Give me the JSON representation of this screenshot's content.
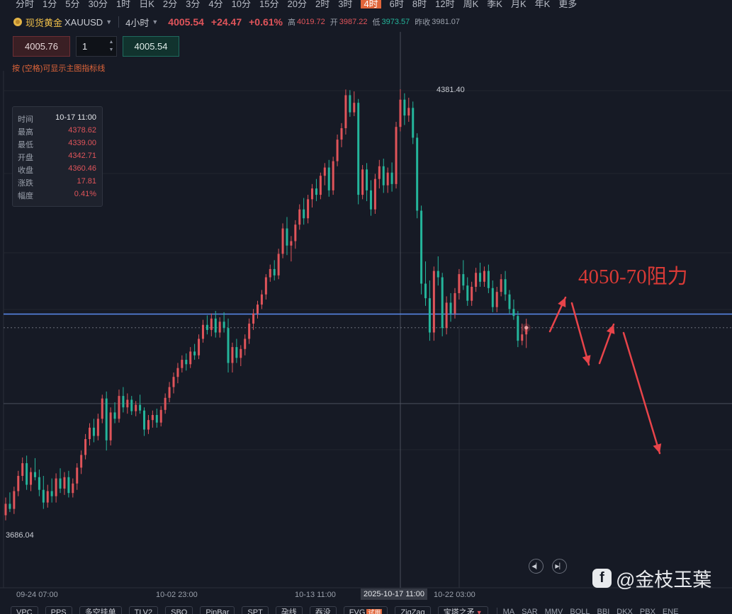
{
  "timeframes": {
    "items": [
      "分时",
      "1分",
      "5分",
      "30分",
      "1时",
      "日K",
      "2分",
      "3分",
      "4分",
      "10分",
      "15分",
      "20分",
      "2时",
      "3时",
      "4时",
      "6时",
      "8时",
      "12时",
      "周K",
      "季K",
      "月K",
      "年K",
      "更多"
    ],
    "active": "4时"
  },
  "instrument": {
    "name": "现货黄金",
    "symbol": "XAUUSD",
    "timeframe": "4小时",
    "price": "4005.54",
    "change": "+24.47",
    "change_pct": "+0.61%",
    "high_label": "高",
    "high": "4019.72",
    "open_label": "开",
    "open": "3987.22",
    "low_label": "低",
    "low": "3973.57",
    "prev_label": "昨收",
    "prev_close": "3981.07"
  },
  "order": {
    "sell_price": "4005.76",
    "quantity": "1",
    "buy_price": "4005.54",
    "hint": "按 (空格)可显示主图指标线"
  },
  "tooltip": {
    "rows": [
      {
        "label": "时间",
        "value": "10-17 11:00"
      },
      {
        "label": "最高",
        "value": "4378.62"
      },
      {
        "label": "最低",
        "value": "4339.00"
      },
      {
        "label": "开盘",
        "value": "4342.71"
      },
      {
        "label": "收盘",
        "value": "4360.46"
      },
      {
        "label": "涨跌",
        "value": "17.81"
      },
      {
        "label": "幅度",
        "value": "0.41%"
      }
    ]
  },
  "annotation": "4050-70阻力",
  "watermark": "@金枝玉葉",
  "nav": {
    "prev_icon": "skip-back-icon",
    "next_icon": "skip-forward-icon"
  },
  "x_axis": {
    "labels": [
      "09-24 07:00",
      "10-02 23:00",
      "10-13 11:00",
      "10-22 03:00"
    ],
    "crosshair_label": "2025-10-17 11:00"
  },
  "toolbar": {
    "pills": [
      "VPC",
      "PPS",
      "多空挂单",
      "TLV2",
      "SBO",
      "PinBar",
      "SPT",
      "孕线",
      "吞没",
      "FVG",
      "ZigZag",
      "宝塔之矛"
    ],
    "trial_tag": "试用",
    "indicators": [
      "MA",
      "SAR",
      "MMV",
      "BOLL",
      "BBI",
      "DKX",
      "PBX",
      "ENE"
    ]
  },
  "chart_data": {
    "type": "candlestick",
    "symbol": "XAUUSD",
    "interval": "4H",
    "max_label": "4381.40",
    "min_label": "3686.04",
    "resistance_line": 4027,
    "current_price_line": 4005.54,
    "crosshair_price": 3886,
    "colors": {
      "up": "#e0545a",
      "down": "#24b59b",
      "resistance": "#5b8cf0"
    },
    "candles": [
      {
        "o": 3710,
        "h": 3738,
        "l": 3702,
        "c": 3728
      },
      {
        "o": 3728,
        "h": 3746,
        "l": 3715,
        "c": 3720
      },
      {
        "o": 3720,
        "h": 3755,
        "l": 3712,
        "c": 3748
      },
      {
        "o": 3748,
        "h": 3780,
        "l": 3740,
        "c": 3772
      },
      {
        "o": 3772,
        "h": 3801,
        "l": 3764,
        "c": 3792
      },
      {
        "o": 3792,
        "h": 3804,
        "l": 3750,
        "c": 3758
      },
      {
        "o": 3758,
        "h": 3785,
        "l": 3748,
        "c": 3778
      },
      {
        "o": 3778,
        "h": 3800,
        "l": 3765,
        "c": 3770
      },
      {
        "o": 3770,
        "h": 3782,
        "l": 3740,
        "c": 3750
      },
      {
        "o": 3750,
        "h": 3772,
        "l": 3720,
        "c": 3730
      },
      {
        "o": 3730,
        "h": 3758,
        "l": 3722,
        "c": 3748
      },
      {
        "o": 3748,
        "h": 3768,
        "l": 3730,
        "c": 3740
      },
      {
        "o": 3740,
        "h": 3776,
        "l": 3730,
        "c": 3768
      },
      {
        "o": 3768,
        "h": 3784,
        "l": 3745,
        "c": 3752
      },
      {
        "o": 3752,
        "h": 3778,
        "l": 3742,
        "c": 3770
      },
      {
        "o": 3770,
        "h": 3780,
        "l": 3738,
        "c": 3745
      },
      {
        "o": 3745,
        "h": 3768,
        "l": 3738,
        "c": 3760
      },
      {
        "o": 3760,
        "h": 3792,
        "l": 3750,
        "c": 3785
      },
      {
        "o": 3785,
        "h": 3812,
        "l": 3775,
        "c": 3805
      },
      {
        "o": 3805,
        "h": 3838,
        "l": 3798,
        "c": 3830
      },
      {
        "o": 3830,
        "h": 3855,
        "l": 3820,
        "c": 3848
      },
      {
        "o": 3848,
        "h": 3862,
        "l": 3825,
        "c": 3835
      },
      {
        "o": 3835,
        "h": 3870,
        "l": 3828,
        "c": 3862
      },
      {
        "o": 3862,
        "h": 3900,
        "l": 3855,
        "c": 3894
      },
      {
        "o": 3894,
        "h": 3905,
        "l": 3812,
        "c": 3828
      },
      {
        "o": 3828,
        "h": 3880,
        "l": 3820,
        "c": 3872
      },
      {
        "o": 3872,
        "h": 3888,
        "l": 3855,
        "c": 3862
      },
      {
        "o": 3862,
        "h": 3908,
        "l": 3856,
        "c": 3898
      },
      {
        "o": 3898,
        "h": 3912,
        "l": 3872,
        "c": 3880
      },
      {
        "o": 3880,
        "h": 3902,
        "l": 3870,
        "c": 3892
      },
      {
        "o": 3892,
        "h": 3898,
        "l": 3868,
        "c": 3874
      },
      {
        "o": 3874,
        "h": 3890,
        "l": 3866,
        "c": 3884
      },
      {
        "o": 3884,
        "h": 3900,
        "l": 3870,
        "c": 3875
      },
      {
        "o": 3875,
        "h": 3880,
        "l": 3835,
        "c": 3845
      },
      {
        "o": 3845,
        "h": 3868,
        "l": 3838,
        "c": 3860
      },
      {
        "o": 3860,
        "h": 3875,
        "l": 3848,
        "c": 3868
      },
      {
        "o": 3868,
        "h": 3878,
        "l": 3848,
        "c": 3856
      },
      {
        "o": 3856,
        "h": 3882,
        "l": 3850,
        "c": 3876
      },
      {
        "o": 3876,
        "h": 3902,
        "l": 3870,
        "c": 3895
      },
      {
        "o": 3895,
        "h": 3920,
        "l": 3888,
        "c": 3912
      },
      {
        "o": 3912,
        "h": 3935,
        "l": 3902,
        "c": 3928
      },
      {
        "o": 3928,
        "h": 3950,
        "l": 3918,
        "c": 3942
      },
      {
        "o": 3942,
        "h": 3962,
        "l": 3935,
        "c": 3955
      },
      {
        "o": 3955,
        "h": 3965,
        "l": 3938,
        "c": 3948
      },
      {
        "o": 3948,
        "h": 3975,
        "l": 3942,
        "c": 3968
      },
      {
        "o": 3968,
        "h": 3980,
        "l": 3955,
        "c": 3962
      },
      {
        "o": 3962,
        "h": 3995,
        "l": 3956,
        "c": 3988
      },
      {
        "o": 3988,
        "h": 4018,
        "l": 3982,
        "c": 4010
      },
      {
        "o": 4010,
        "h": 4025,
        "l": 3995,
        "c": 4002
      },
      {
        "o": 4002,
        "h": 4028,
        "l": 3992,
        "c": 4020
      },
      {
        "o": 4020,
        "h": 4032,
        "l": 3990,
        "c": 3998
      },
      {
        "o": 3998,
        "h": 4022,
        "l": 3990,
        "c": 4015
      },
      {
        "o": 4015,
        "h": 4030,
        "l": 3998,
        "c": 4005
      },
      {
        "o": 4005,
        "h": 4020,
        "l": 3935,
        "c": 3950
      },
      {
        "o": 3950,
        "h": 3982,
        "l": 3935,
        "c": 3975
      },
      {
        "o": 3975,
        "h": 3988,
        "l": 3950,
        "c": 3958
      },
      {
        "o": 3958,
        "h": 3978,
        "l": 3945,
        "c": 3972
      },
      {
        "o": 3972,
        "h": 3995,
        "l": 3962,
        "c": 3988
      },
      {
        "o": 3988,
        "h": 4020,
        "l": 3980,
        "c": 4012
      },
      {
        "o": 4012,
        "h": 4035,
        "l": 4002,
        "c": 4028
      },
      {
        "o": 4028,
        "h": 4048,
        "l": 4020,
        "c": 4042
      },
      {
        "o": 4042,
        "h": 4065,
        "l": 4035,
        "c": 4058
      },
      {
        "o": 4058,
        "h": 4090,
        "l": 4050,
        "c": 4085
      },
      {
        "o": 4085,
        "h": 4105,
        "l": 4078,
        "c": 4098
      },
      {
        "o": 4098,
        "h": 4112,
        "l": 4080,
        "c": 4088
      },
      {
        "o": 4088,
        "h": 4130,
        "l": 4082,
        "c": 4122
      },
      {
        "o": 4122,
        "h": 4170,
        "l": 4115,
        "c": 4162
      },
      {
        "o": 4162,
        "h": 4180,
        "l": 4120,
        "c": 4135
      },
      {
        "o": 4135,
        "h": 4150,
        "l": 4110,
        "c": 4142
      },
      {
        "o": 4142,
        "h": 4175,
        "l": 4130,
        "c": 4168
      },
      {
        "o": 4168,
        "h": 4200,
        "l": 4160,
        "c": 4192
      },
      {
        "o": 4192,
        "h": 4210,
        "l": 4168,
        "c": 4178
      },
      {
        "o": 4178,
        "h": 4215,
        "l": 4170,
        "c": 4208
      },
      {
        "o": 4208,
        "h": 4232,
        "l": 4195,
        "c": 4225
      },
      {
        "o": 4225,
        "h": 4240,
        "l": 4205,
        "c": 4215
      },
      {
        "o": 4215,
        "h": 4250,
        "l": 4208,
        "c": 4245
      },
      {
        "o": 4245,
        "h": 4265,
        "l": 4230,
        "c": 4258
      },
      {
        "o": 4258,
        "h": 4270,
        "l": 4212,
        "c": 4222
      },
      {
        "o": 4222,
        "h": 4275,
        "l": 4215,
        "c": 4268
      },
      {
        "o": 4268,
        "h": 4310,
        "l": 4260,
        "c": 4302
      },
      {
        "o": 4302,
        "h": 4328,
        "l": 4290,
        "c": 4320
      },
      {
        "o": 4320,
        "h": 4381,
        "l": 4310,
        "c": 4372
      },
      {
        "o": 4372,
        "h": 4380,
        "l": 4338,
        "c": 4345
      },
      {
        "o": 4345,
        "h": 4378,
        "l": 4339,
        "c": 4360
      },
      {
        "o": 4360,
        "h": 4366,
        "l": 4200,
        "c": 4215
      },
      {
        "o": 4215,
        "h": 4262,
        "l": 4208,
        "c": 4255
      },
      {
        "o": 4255,
        "h": 4265,
        "l": 4205,
        "c": 4222
      },
      {
        "o": 4222,
        "h": 4238,
        "l": 4182,
        "c": 4192
      },
      {
        "o": 4192,
        "h": 4248,
        "l": 4185,
        "c": 4240
      },
      {
        "o": 4240,
        "h": 4270,
        "l": 4225,
        "c": 4260
      },
      {
        "o": 4260,
        "h": 4272,
        "l": 4218,
        "c": 4230
      },
      {
        "o": 4230,
        "h": 4258,
        "l": 4218,
        "c": 4250
      },
      {
        "o": 4250,
        "h": 4266,
        "l": 4220,
        "c": 4232
      },
      {
        "o": 4232,
        "h": 4330,
        "l": 4225,
        "c": 4322
      },
      {
        "o": 4322,
        "h": 4381.4,
        "l": 4315,
        "c": 4365
      },
      {
        "o": 4365,
        "h": 4375,
        "l": 4325,
        "c": 4340
      },
      {
        "o": 4340,
        "h": 4368,
        "l": 4330,
        "c": 4352
      },
      {
        "o": 4352,
        "h": 4362,
        "l": 4295,
        "c": 4305
      },
      {
        "o": 4305,
        "h": 4312,
        "l": 4178,
        "c": 4190
      },
      {
        "o": 4190,
        "h": 4198,
        "l": 4058,
        "c": 4075
      },
      {
        "o": 4075,
        "h": 4110,
        "l": 4040,
        "c": 4052
      },
      {
        "o": 4052,
        "h": 4080,
        "l": 3985,
        "c": 3998
      },
      {
        "o": 3998,
        "h": 4102,
        "l": 3985,
        "c": 4095
      },
      {
        "o": 4095,
        "h": 4118,
        "l": 4072,
        "c": 4085
      },
      {
        "o": 4085,
        "h": 4092,
        "l": 3992,
        "c": 4005
      },
      {
        "o": 4005,
        "h": 4055,
        "l": 3995,
        "c": 4045
      },
      {
        "o": 4045,
        "h": 4060,
        "l": 4015,
        "c": 4028
      },
      {
        "o": 4028,
        "h": 4068,
        "l": 4020,
        "c": 4060
      },
      {
        "o": 4060,
        "h": 4098,
        "l": 4050,
        "c": 4090
      },
      {
        "o": 4090,
        "h": 4112,
        "l": 4065,
        "c": 4072
      },
      {
        "o": 4072,
        "h": 4085,
        "l": 4040,
        "c": 4048
      },
      {
        "o": 4048,
        "h": 4078,
        "l": 4040,
        "c": 4070
      },
      {
        "o": 4070,
        "h": 4100,
        "l": 4062,
        "c": 4092
      },
      {
        "o": 4092,
        "h": 4108,
        "l": 4070,
        "c": 4078
      },
      {
        "o": 4078,
        "h": 4102,
        "l": 4070,
        "c": 4095
      },
      {
        "o": 4095,
        "h": 4105,
        "l": 4060,
        "c": 4068
      },
      {
        "o": 4068,
        "h": 4080,
        "l": 4030,
        "c": 4038
      },
      {
        "o": 4038,
        "h": 4070,
        "l": 4030,
        "c": 4062
      },
      {
        "o": 4062,
        "h": 4090,
        "l": 4055,
        "c": 4082
      },
      {
        "o": 4082,
        "h": 4095,
        "l": 4048,
        "c": 4058
      },
      {
        "o": 4058,
        "h": 4065,
        "l": 4028,
        "c": 4035
      },
      {
        "o": 4035,
        "h": 4050,
        "l": 4018,
        "c": 4024
      },
      {
        "o": 4024,
        "h": 4032,
        "l": 3975,
        "c": 3985
      },
      {
        "o": 3985,
        "h": 4012,
        "l": 3978,
        "c": 3995
      },
      {
        "o": 3995,
        "h": 4019.72,
        "l": 3973.57,
        "c": 4005.54
      }
    ]
  }
}
